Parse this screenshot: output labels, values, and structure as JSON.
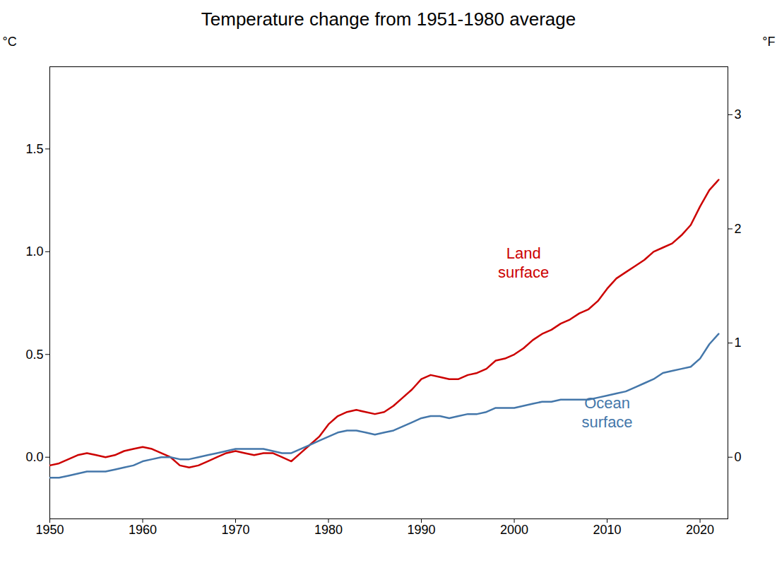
{
  "chart_data": {
    "type": "line",
    "title": "Temperature change from 1951-1980 average",
    "y_label": "°C",
    "y2_label": "°F",
    "x": [
      1950,
      1951,
      1952,
      1953,
      1954,
      1955,
      1956,
      1957,
      1958,
      1959,
      1960,
      1961,
      1962,
      1963,
      1964,
      1965,
      1966,
      1967,
      1968,
      1969,
      1970,
      1971,
      1972,
      1973,
      1974,
      1975,
      1976,
      1977,
      1978,
      1979,
      1980,
      1981,
      1982,
      1983,
      1984,
      1985,
      1986,
      1987,
      1988,
      1989,
      1990,
      1991,
      1992,
      1993,
      1994,
      1995,
      1996,
      1997,
      1998,
      1999,
      2000,
      2001,
      2002,
      2003,
      2004,
      2005,
      2006,
      2007,
      2008,
      2009,
      2010,
      2011,
      2012,
      2013,
      2014,
      2015,
      2016,
      2017,
      2018,
      2019,
      2020,
      2021,
      2022
    ],
    "series": [
      {
        "color": "#cc0000",
        "values": [
          -0.04,
          -0.03,
          -0.01,
          0.01,
          0.02,
          0.01,
          0.0,
          0.01,
          0.03,
          0.04,
          0.05,
          0.04,
          0.02,
          0.0,
          -0.04,
          -0.05,
          -0.04,
          -0.02,
          0.0,
          0.02,
          0.03,
          0.02,
          0.01,
          0.02,
          0.02,
          0.0,
          -0.02,
          0.02,
          0.06,
          0.1,
          0.16,
          0.2,
          0.22,
          0.23,
          0.22,
          0.21,
          0.22,
          0.25,
          0.29,
          0.33,
          0.38,
          0.4,
          0.39,
          0.38,
          0.38,
          0.4,
          0.41,
          0.43,
          0.47,
          0.48,
          0.5,
          0.53,
          0.57,
          0.6,
          0.62,
          0.65,
          0.67,
          0.7,
          0.72,
          0.76,
          0.82,
          0.87,
          0.9,
          0.93,
          0.96,
          1.0,
          1.02,
          1.04,
          1.08,
          1.13,
          1.22,
          1.3,
          1.35
        ]
      },
      {
        "color": "#4477aa",
        "values": [
          -0.1,
          -0.1,
          -0.09,
          -0.08,
          -0.07,
          -0.07,
          -0.07,
          -0.06,
          -0.05,
          -0.04,
          -0.02,
          -0.01,
          0.0,
          0.0,
          -0.01,
          -0.01,
          0.0,
          0.01,
          0.02,
          0.03,
          0.04,
          0.04,
          0.04,
          0.04,
          0.03,
          0.02,
          0.02,
          0.04,
          0.06,
          0.08,
          0.1,
          0.12,
          0.13,
          0.13,
          0.12,
          0.11,
          0.12,
          0.13,
          0.15,
          0.17,
          0.19,
          0.2,
          0.2,
          0.19,
          0.2,
          0.21,
          0.21,
          0.22,
          0.24,
          0.24,
          0.24,
          0.25,
          0.26,
          0.27,
          0.27,
          0.28,
          0.28,
          0.28,
          0.28,
          0.29,
          0.3,
          0.31,
          0.32,
          0.34,
          0.36,
          0.38,
          0.41,
          0.42,
          0.43,
          0.44,
          0.48,
          0.55,
          0.6
        ]
      }
    ],
    "xlim": [
      1950,
      2023
    ],
    "xticks": [
      1950,
      1960,
      1970,
      1980,
      1990,
      2000,
      2010,
      2020
    ],
    "ylim": [
      -0.3,
      1.9
    ],
    "yticks": [
      {
        "value": 0.0,
        "label": "0.0"
      },
      0.5,
      {
        "value": 1.0,
        "label": "1.0"
      },
      1.5
    ],
    "y2lim": [
      -0.54,
      3.42
    ],
    "y2ticks": [
      0,
      1,
      2,
      3
    ],
    "annotations": [
      {
        "text": "Land\nsurface",
        "x": 2001,
        "y": 0.95,
        "color": "#cc0000"
      },
      {
        "text": "Ocean\nsurface",
        "x": 2010,
        "y": 0.22,
        "color": "#4477aa"
      }
    ],
    "grid": false
  }
}
